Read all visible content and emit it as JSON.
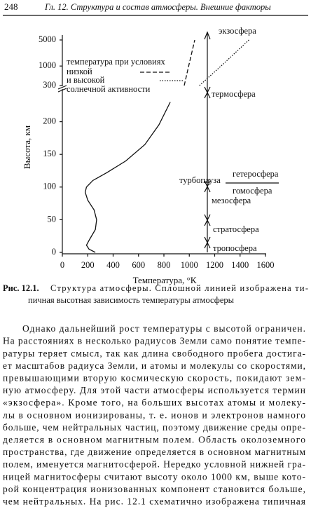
{
  "header": {
    "page": "248",
    "title": "Гл. 12. Структура и состав атмосферы. Внешние факторы"
  },
  "chart_data": {
    "type": "line",
    "xlabel": "Температура, °К",
    "ylabel": "Высота, км",
    "xlim": [
      0,
      1600
    ],
    "xticks": [
      0,
      200,
      400,
      600,
      800,
      1000,
      1200,
      1400,
      1600
    ],
    "ylim": [
      0,
      250
    ],
    "yticks": [
      0,
      50,
      100,
      150,
      200
    ],
    "y2lim": [
      300,
      5000
    ],
    "y2ticks": [
      300,
      1000,
      5000
    ],
    "y2log": true,
    "legend_title": "температура при условиях",
    "legend_note": "солнечной активности",
    "series": [
      {
        "style": "solid",
        "color": "#111111",
        "x": [
          260,
          210,
          190,
          215,
          260,
          270,
          250,
          200,
          180,
          190,
          240,
          350,
          500,
          650,
          760,
          850
        ],
        "values": [
          0,
          5,
          11,
          20,
          35,
          50,
          65,
          80,
          92,
          100,
          110,
          122,
          140,
          165,
          195,
          230
        ]
      },
      {
        "name": "низкой",
        "style": "dashed",
        "color": "#111111",
        "axis": "y2",
        "x": [
          960,
          995,
          1043
        ],
        "values": [
          300,
          1000,
          5000
        ]
      },
      {
        "name": "и высокой",
        "style": "dotted",
        "color": "#111111",
        "axis": "y2",
        "x": [
          1080,
          1250,
          1470
        ],
        "values": [
          300,
          1000,
          5000
        ]
      }
    ],
    "annotations": [
      "экзосфера",
      "термосфера",
      "гетеросфера",
      "турбопауза",
      "гомосфера",
      "мезосфера",
      "стратосфера",
      "тропосфера"
    ]
  },
  "caption": {
    "label": "Рис. 12.1.",
    "lines": [
      "Структура атмосферы. Сплошной линией изображена ти-",
      "пичная высотная зависимость температуры атмосферы"
    ]
  },
  "body": {
    "lines": [
      "Однако дальнейший рост температуры с высотой ограничен.",
      "На расстояниях в несколько радиусов Земли само понятие темпе-",
      "ратуры теряет смысл, так как длина свободного пробега достига-",
      "ет масштабов радиуса Земли, и атомы и молекулы со скоростями,",
      "превышающими вторую космическую скорость, покидают зем-",
      "ную атмосферу. Для этой части атмосферы используется термин",
      "«экзосфера». Кроме того, на больших высотах атомы и молеку-",
      "лы в основном ионизированы, т. е. ионов и электронов намного",
      "больше, чем нейтральных частиц, поэтому движение среды опре-",
      "деляется в основном магнитным полем. Область околоземного",
      "пространства, где движение определяется в основном магнитным",
      "полем, именуется магнитосферой. Нередко условной нижней гра-",
      "ницей магнитосферы считают высоту около 1000 км, выше кото-",
      "рой концентрация ионизованных компонент становится больше,",
      "чем нейтральных. На рис. 12.1 схематично изображена типичная"
    ]
  }
}
